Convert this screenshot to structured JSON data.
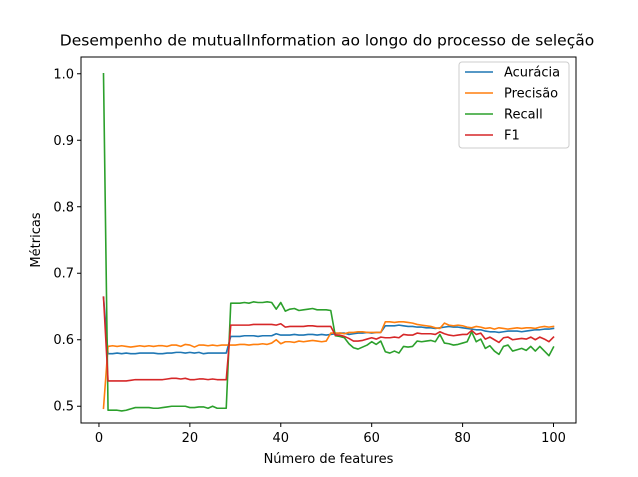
{
  "chart_data": {
    "type": "line",
    "title": "Desempenho de mutualInformation ao longo do processo de seleção",
    "xlabel": "Número de features",
    "ylabel": "Métricas",
    "xlim": [
      -3.95,
      104.95
    ],
    "ylim": [
      0.4748,
      1.0252
    ],
    "xticks": [
      0,
      20,
      40,
      60,
      80,
      100
    ],
    "xtick_labels": [
      "0",
      "20",
      "40",
      "60",
      "80",
      "100"
    ],
    "yticks": [
      0.5,
      0.6,
      0.7,
      0.8,
      0.9,
      1.0
    ],
    "ytick_labels": [
      "0.5",
      "0.6",
      "0.7",
      "0.8",
      "0.9",
      "1.0"
    ],
    "grid": false,
    "legend_position": "top-right",
    "x": [
      1,
      2,
      3,
      4,
      5,
      6,
      7,
      8,
      9,
      10,
      11,
      12,
      13,
      14,
      15,
      16,
      17,
      18,
      19,
      20,
      21,
      22,
      23,
      24,
      25,
      26,
      27,
      28,
      29,
      30,
      31,
      32,
      33,
      34,
      35,
      36,
      37,
      38,
      39,
      40,
      41,
      42,
      43,
      44,
      45,
      46,
      47,
      48,
      49,
      50,
      51,
      52,
      53,
      54,
      55,
      56,
      57,
      58,
      59,
      60,
      61,
      62,
      63,
      64,
      65,
      66,
      67,
      68,
      69,
      70,
      71,
      72,
      73,
      74,
      75,
      76,
      77,
      78,
      79,
      80,
      81,
      82,
      83,
      84,
      85,
      86,
      87,
      88,
      89,
      90,
      91,
      92,
      93,
      94,
      95,
      96,
      97,
      98,
      99,
      100
    ],
    "series": [
      {
        "name": "Acurácia",
        "color": "#1f77b4",
        "values": [
          0.664,
          0.579,
          0.579,
          0.58,
          0.579,
          0.58,
          0.579,
          0.579,
          0.58,
          0.58,
          0.58,
          0.58,
          0.579,
          0.579,
          0.58,
          0.58,
          0.581,
          0.581,
          0.58,
          0.581,
          0.58,
          0.581,
          0.579,
          0.58,
          0.58,
          0.58,
          0.58,
          0.58,
          0.605,
          0.605,
          0.605,
          0.606,
          0.606,
          0.606,
          0.605,
          0.606,
          0.606,
          0.606,
          0.609,
          0.607,
          0.607,
          0.607,
          0.608,
          0.607,
          0.607,
          0.608,
          0.608,
          0.607,
          0.608,
          0.607,
          0.608,
          0.609,
          0.61,
          0.61,
          0.608,
          0.609,
          0.61,
          0.61,
          0.611,
          0.61,
          0.611,
          0.611,
          0.621,
          0.621,
          0.621,
          0.622,
          0.621,
          0.62,
          0.62,
          0.619,
          0.619,
          0.618,
          0.618,
          0.617,
          0.618,
          0.619,
          0.62,
          0.619,
          0.619,
          0.618,
          0.617,
          0.616,
          0.615,
          0.615,
          0.613,
          0.612,
          0.612,
          0.611,
          0.612,
          0.613,
          0.613,
          0.613,
          0.612,
          0.613,
          0.614,
          0.615,
          0.615,
          0.616,
          0.616,
          0.617
        ]
      },
      {
        "name": "Precisão",
        "color": "#ff7f0e",
        "values": [
          0.497,
          0.59,
          0.591,
          0.59,
          0.591,
          0.59,
          0.589,
          0.59,
          0.591,
          0.59,
          0.591,
          0.59,
          0.591,
          0.591,
          0.59,
          0.592,
          0.592,
          0.59,
          0.593,
          0.592,
          0.589,
          0.592,
          0.592,
          0.591,
          0.592,
          0.591,
          0.592,
          0.592,
          0.592,
          0.592,
          0.593,
          0.593,
          0.592,
          0.593,
          0.593,
          0.594,
          0.593,
          0.595,
          0.6,
          0.594,
          0.597,
          0.597,
          0.596,
          0.598,
          0.597,
          0.598,
          0.599,
          0.598,
          0.597,
          0.598,
          0.61,
          0.61,
          0.61,
          0.609,
          0.611,
          0.611,
          0.612,
          0.612,
          0.611,
          0.611,
          0.611,
          0.611,
          0.627,
          0.627,
          0.626,
          0.627,
          0.627,
          0.626,
          0.625,
          0.623,
          0.622,
          0.621,
          0.62,
          0.618,
          0.617,
          0.625,
          0.622,
          0.621,
          0.622,
          0.621,
          0.619,
          0.618,
          0.62,
          0.619,
          0.617,
          0.618,
          0.616,
          0.618,
          0.617,
          0.616,
          0.617,
          0.618,
          0.617,
          0.618,
          0.618,
          0.617,
          0.619,
          0.62,
          0.619,
          0.62
        ]
      },
      {
        "name": "Recall",
        "color": "#2ca02c",
        "values": [
          1.0,
          0.494,
          0.494,
          0.494,
          0.493,
          0.494,
          0.496,
          0.498,
          0.498,
          0.498,
          0.498,
          0.497,
          0.497,
          0.498,
          0.499,
          0.5,
          0.5,
          0.5,
          0.5,
          0.498,
          0.498,
          0.499,
          0.499,
          0.497,
          0.5,
          0.497,
          0.497,
          0.497,
          0.655,
          0.655,
          0.655,
          0.656,
          0.655,
          0.657,
          0.656,
          0.656,
          0.657,
          0.656,
          0.646,
          0.656,
          0.643,
          0.646,
          0.647,
          0.644,
          0.645,
          0.646,
          0.647,
          0.645,
          0.645,
          0.645,
          0.644,
          0.606,
          0.605,
          0.603,
          0.594,
          0.588,
          0.586,
          0.589,
          0.592,
          0.597,
          0.593,
          0.598,
          0.582,
          0.58,
          0.583,
          0.58,
          0.59,
          0.589,
          0.59,
          0.598,
          0.597,
          0.598,
          0.599,
          0.597,
          0.608,
          0.595,
          0.594,
          0.592,
          0.593,
          0.595,
          0.597,
          0.612,
          0.597,
          0.601,
          0.587,
          0.591,
          0.583,
          0.578,
          0.59,
          0.592,
          0.583,
          0.585,
          0.587,
          0.584,
          0.59,
          0.583,
          0.59,
          0.583,
          0.576,
          0.589
        ]
      },
      {
        "name": "F1",
        "color": "#d62728",
        "values": [
          0.664,
          0.538,
          0.538,
          0.538,
          0.538,
          0.538,
          0.539,
          0.54,
          0.54,
          0.54,
          0.54,
          0.54,
          0.54,
          0.54,
          0.541,
          0.542,
          0.542,
          0.541,
          0.542,
          0.54,
          0.54,
          0.541,
          0.541,
          0.54,
          0.541,
          0.54,
          0.54,
          0.54,
          0.622,
          0.622,
          0.622,
          0.622,
          0.622,
          0.623,
          0.623,
          0.623,
          0.623,
          0.623,
          0.622,
          0.624,
          0.619,
          0.62,
          0.62,
          0.62,
          0.62,
          0.621,
          0.621,
          0.62,
          0.62,
          0.62,
          0.62,
          0.607,
          0.607,
          0.605,
          0.602,
          0.598,
          0.598,
          0.599,
          0.601,
          0.603,
          0.601,
          0.604,
          0.603,
          0.603,
          0.604,
          0.603,
          0.608,
          0.607,
          0.607,
          0.61,
          0.609,
          0.609,
          0.609,
          0.608,
          0.612,
          0.609,
          0.607,
          0.606,
          0.607,
          0.608,
          0.608,
          0.614,
          0.608,
          0.61,
          0.601,
          0.604,
          0.6,
          0.596,
          0.603,
          0.604,
          0.6,
          0.601,
          0.602,
          0.601,
          0.604,
          0.6,
          0.604,
          0.601,
          0.597,
          0.604
        ]
      }
    ]
  }
}
